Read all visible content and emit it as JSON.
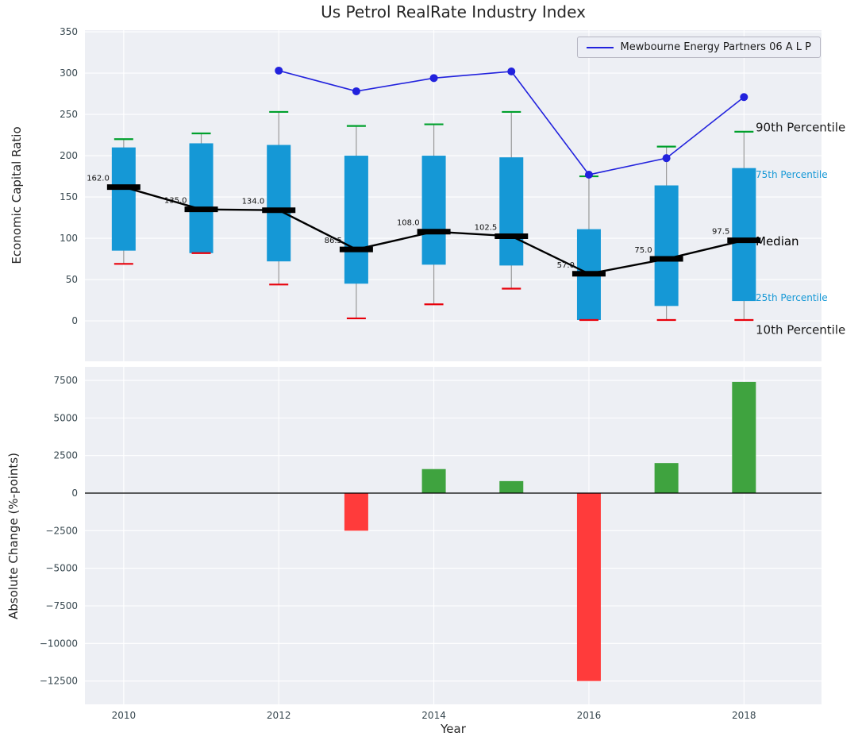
{
  "figure": {
    "title": "Us Petrol RealRate Industry Index",
    "xlabel": "Year",
    "background": "#ffffff",
    "panel_background": "#edeff4",
    "grid_color": "#ffffff"
  },
  "legend": {
    "label": "Mewbourne Energy Partners 06 A L P",
    "line_color": "#2222dd"
  },
  "chart_data": [
    {
      "type": "box-line",
      "panel": "top",
      "title": "Us Petrol RealRate Industry Index",
      "ylabel": "Economic Capital Ratio",
      "xlim": [
        2009.5,
        2019.0
      ],
      "ylim": [
        -49,
        352
      ],
      "yticks": [
        0,
        50,
        100,
        150,
        200,
        250,
        300,
        350
      ],
      "xticks": [
        2010,
        2012,
        2014,
        2016,
        2018
      ],
      "years": [
        2010,
        2011,
        2012,
        2013,
        2014,
        2015,
        2016,
        2017,
        2018
      ],
      "median": [
        162.0,
        135.0,
        134.0,
        86.5,
        108.0,
        102.5,
        57.0,
        75.0,
        97.5
      ],
      "median_labels": [
        "162.0",
        "135.0",
        "134.0",
        "86.5",
        "108.0",
        "102.5",
        "57.0",
        "75.0",
        "97.5"
      ],
      "q1": [
        85,
        82,
        72,
        45,
        68,
        67,
        1,
        18,
        24
      ],
      "q3": [
        210,
        215,
        213,
        200,
        200,
        198,
        111,
        164,
        185
      ],
      "p90": [
        220,
        227,
        253,
        236,
        238,
        253,
        175,
        211,
        229
      ],
      "p10": [
        69,
        82,
        44,
        3,
        20,
        39,
        1,
        1,
        1
      ],
      "series": [
        {
          "name": "Mewbourne Energy Partners 06 A L P",
          "x": [
            2012,
            2013,
            2014,
            2015,
            2016,
            2017,
            2018
          ],
          "y": [
            303,
            278,
            294,
            302,
            177,
            197,
            271
          ],
          "color": "#2222dd"
        }
      ],
      "colors": {
        "box": "#1598d6",
        "p90": "#00a02c",
        "p10": "#e8000b",
        "median": "#000000",
        "whisker": "#999999"
      },
      "annotations": [
        {
          "text": "90th Percentile",
          "y": 234,
          "color": "#1a1a1a",
          "size": 15
        },
        {
          "text": "75th Percentile",
          "y": 178,
          "color": "#1598d6",
          "size": 12
        },
        {
          "text": "Median",
          "y": 96,
          "color": "#000000",
          "size": 15
        },
        {
          "text": "25th Percentile",
          "y": 29,
          "color": "#1598d6",
          "size": 12
        },
        {
          "text": "10th Percentile",
          "y": -11,
          "color": "#1a1a1a",
          "size": 15
        }
      ]
    },
    {
      "type": "bar",
      "panel": "bottom",
      "ylabel": "Absolute Change (%-points)",
      "xlim": [
        2009.5,
        2019.0
      ],
      "ylim": [
        -14050,
        8400
      ],
      "yticks": [
        7500,
        5000,
        2500,
        0,
        -2500,
        -5000,
        -7500,
        -10000,
        -12500
      ],
      "x": [
        2013,
        2014,
        2015,
        2016,
        2017,
        2018
      ],
      "values": [
        -2500,
        1600,
        800,
        -12500,
        2000,
        7400
      ],
      "colors": {
        "positive": "#3fa33f",
        "negative": "#ff3b3b",
        "zero_line": "#000000"
      }
    }
  ]
}
